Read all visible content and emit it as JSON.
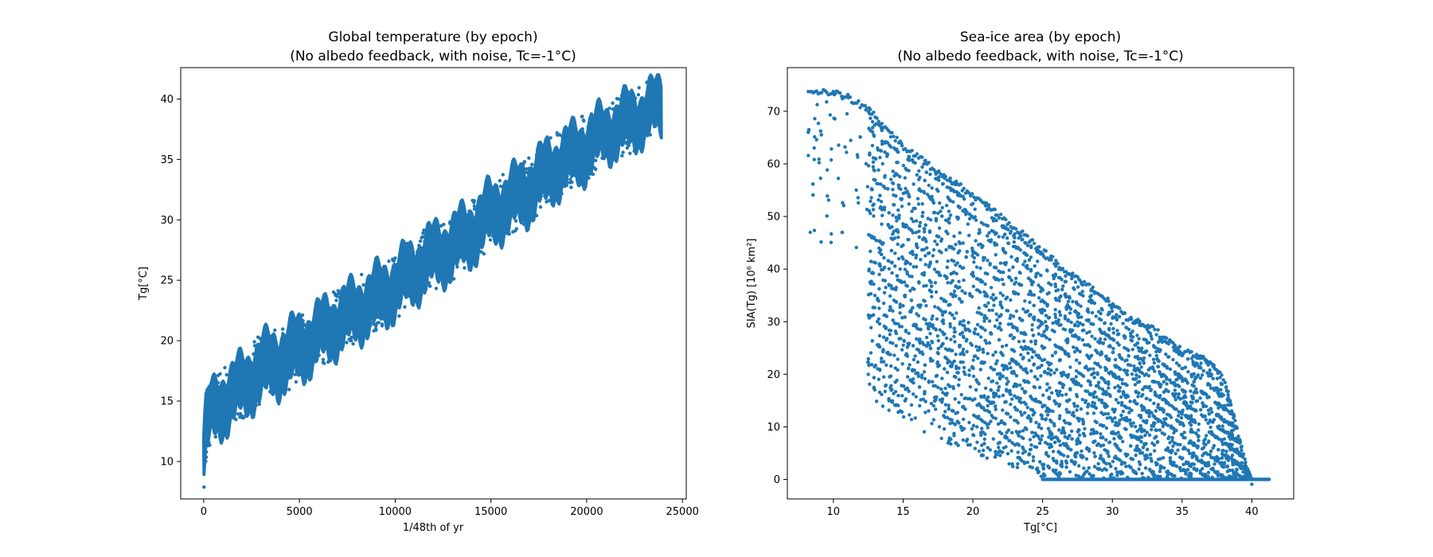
{
  "chart_data": [
    {
      "type": "scatter",
      "title_line1": "Global temperature (by epoch)",
      "title_line2": "(No albedo feedback, with noise, Tc=-1°C)",
      "xlabel": "1/48th of yr",
      "ylabel": "Tg[°C]",
      "xlim": [
        -1200,
        25200
      ],
      "ylim": [
        6.9,
        42.6
      ],
      "xticks": [
        0,
        5000,
        10000,
        15000,
        20000,
        25000
      ],
      "xtick_labels": [
        "0",
        "5000",
        "10000",
        "15000",
        "20000",
        "25000"
      ],
      "yticks": [
        10,
        15,
        20,
        25,
        30,
        35,
        40
      ],
      "ytick_labels": [
        "10",
        "15",
        "20",
        "25",
        "30",
        "35",
        "40"
      ],
      "series_color": "#1f77b4",
      "band": {
        "x": [
          0,
          100,
          300,
          600,
          1000,
          2000,
          3000,
          4000,
          5000,
          6000,
          7000,
          8000,
          9000,
          10000,
          11000,
          12000,
          13000,
          14000,
          15000,
          16000,
          17000,
          18000,
          19000,
          20000,
          21000,
          22000,
          23000,
          23900
        ],
        "y_low": [
          8.2,
          10.5,
          11.8,
          12.3,
          12.8,
          14.2,
          15.5,
          16.2,
          17.2,
          18.5,
          19.5,
          20.5,
          21.5,
          22.5,
          23.8,
          25.0,
          25.8,
          27.0,
          28.5,
          29.5,
          30.5,
          32.0,
          33.0,
          34.0,
          35.5,
          36.0,
          37.0,
          37.5
        ],
        "y_high": [
          12.0,
          14.5,
          15.8,
          16.2,
          17.0,
          18.2,
          19.8,
          20.5,
          21.5,
          22.5,
          23.5,
          24.5,
          25.5,
          26.5,
          27.8,
          29.0,
          29.8,
          31.0,
          32.5,
          33.5,
          34.5,
          36.0,
          37.0,
          38.0,
          39.0,
          39.8,
          40.5,
          41.3
        ]
      }
    },
    {
      "type": "scatter",
      "title_line1": "Sea-ice area (by epoch)",
      "title_line2": "(No albedo feedback, with noise, Tc=-1°C)",
      "xlabel": "Tg[°C]",
      "ylabel": "SIA(Tg) [10⁶ km²]",
      "xlim": [
        6.7,
        43.0
      ],
      "ylim": [
        -3.7,
        78.3
      ],
      "xticks": [
        10,
        15,
        20,
        25,
        30,
        35,
        40
      ],
      "xtick_labels": [
        "10",
        "15",
        "20",
        "25",
        "30",
        "35",
        "40"
      ],
      "yticks": [
        0,
        10,
        20,
        30,
        40,
        50,
        60,
        70
      ],
      "ytick_labels": [
        "0",
        "10",
        "20",
        "30",
        "40",
        "50",
        "60",
        "70"
      ],
      "series_color": "#1f77b4",
      "upper_edge": {
        "x": [
          8.2,
          10.5,
          12.5,
          13.5,
          15.0,
          17.0,
          19.0,
          21.0,
          23.0,
          25.0,
          27.0,
          29.0,
          31.0,
          33.0,
          35.0,
          36.5,
          38.0,
          39.5,
          40.0
        ],
        "y": [
          74.5,
          74.0,
          71.0,
          68.0,
          64.0,
          60.0,
          56.5,
          52.5,
          48.5,
          44.0,
          39.5,
          36.0,
          31.5,
          29.0,
          25.0,
          24.0,
          20.0,
          4.0,
          0.0
        ]
      },
      "lower_edge": {
        "x": [
          12.0,
          14.5,
          17.0,
          20.0,
          22.0,
          24.0,
          25.0,
          41.3
        ],
        "y": [
          16.0,
          12.0,
          8.0,
          5.0,
          3.0,
          1.0,
          0.0,
          0.0
        ]
      },
      "zero_line": {
        "x": [
          25.0,
          41.3
        ],
        "y": 0
      }
    }
  ]
}
